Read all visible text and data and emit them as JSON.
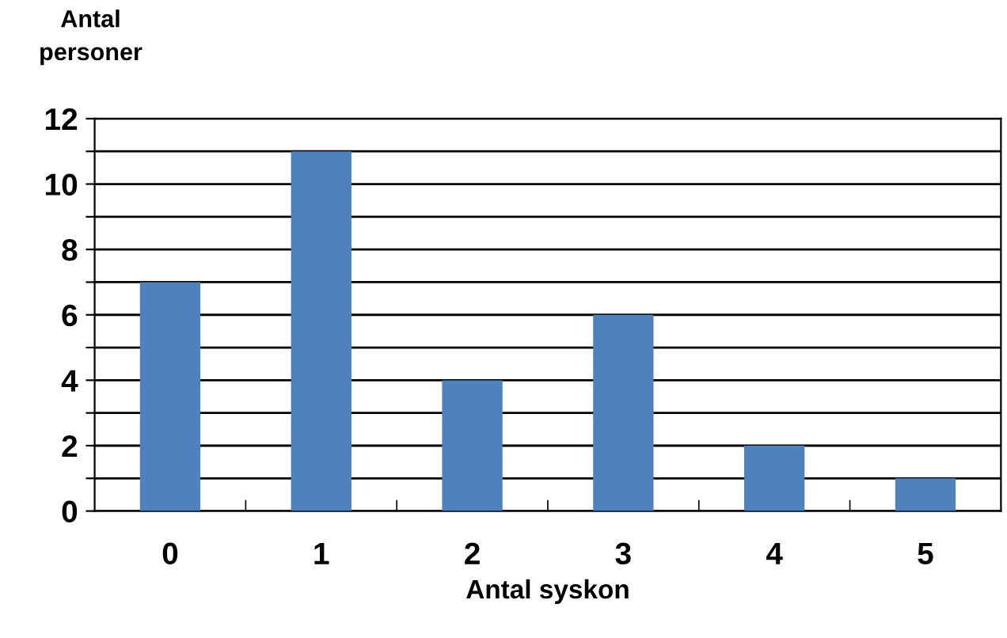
{
  "chart_data": {
    "type": "bar",
    "xlabel": "Antal syskon",
    "ylabel": "Antal\npersoner",
    "categories": [
      "0",
      "1",
      "2",
      "3",
      "4",
      "5"
    ],
    "values": [
      7,
      11,
      4,
      6,
      2,
      1
    ],
    "color": "#4f81bd",
    "ylim": [
      0,
      12
    ],
    "yticks": [
      0,
      {
        "value": 1,
        "label": null
      },
      2,
      {
        "value": 3,
        "label": null
      },
      4,
      {
        "value": 5,
        "label": null
      },
      6,
      {
        "value": 7,
        "label": null
      },
      8,
      {
        "value": 9,
        "label": null
      },
      10,
      {
        "value": 11,
        "label": null
      },
      12
    ],
    "grid": "y"
  }
}
